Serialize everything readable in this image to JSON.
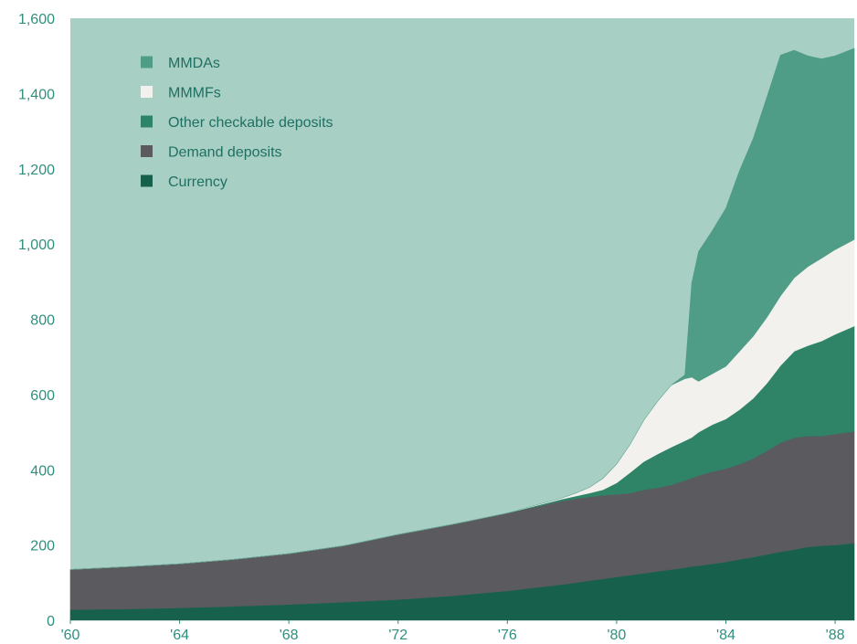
{
  "colors": {
    "background": "#a8cfc4",
    "mmdas": "#4f9c87",
    "mmmfs": "#f2f1ed",
    "other_checkable": "#2f8468",
    "demand": "#5a5a5f",
    "currency": "#17614c",
    "text": "#2f8f7e"
  },
  "legend": [
    {
      "key": "mmdas",
      "label": "MMDAs",
      "color": "#4f9c87"
    },
    {
      "key": "mmmfs",
      "label": "MMMFs",
      "color": "#f2f1ed"
    },
    {
      "key": "other_checkable",
      "label": "Other checkable deposits",
      "color": "#2f8468"
    },
    {
      "key": "demand",
      "label": "Demand deposits",
      "color": "#5a5a5f"
    },
    {
      "key": "currency",
      "label": "Currency",
      "color": "#17614c"
    }
  ],
  "chart_data": {
    "type": "area",
    "stacked": true,
    "title": "",
    "xlabel": "",
    "ylabel": "",
    "xlim": [
      1960,
      1988.7
    ],
    "ylim": [
      0,
      1600
    ],
    "x_ticks": [
      {
        "value": 1960,
        "label": "'60"
      },
      {
        "value": 1964,
        "label": "'64"
      },
      {
        "value": 1968,
        "label": "'68"
      },
      {
        "value": 1972,
        "label": "'72"
      },
      {
        "value": 1976,
        "label": "'76"
      },
      {
        "value": 1980,
        "label": "'80"
      },
      {
        "value": 1984,
        "label": "'84"
      },
      {
        "value": 1988,
        "label": "'88"
      }
    ],
    "y_ticks": [
      {
        "value": 0,
        "label": "0"
      },
      {
        "value": 200,
        "label": "200"
      },
      {
        "value": 400,
        "label": "400"
      },
      {
        "value": 600,
        "label": "600"
      },
      {
        "value": 800,
        "label": "800"
      },
      {
        "value": 1000,
        "label": "1,000"
      },
      {
        "value": 1200,
        "label": "1,200"
      },
      {
        "value": 1400,
        "label": "1,400"
      },
      {
        "value": 1600,
        "label": "1,600"
      }
    ],
    "legend_position": "top-left",
    "grid": false,
    "x": [
      1960,
      1962,
      1964,
      1966,
      1968,
      1970,
      1972,
      1974,
      1976,
      1978,
      1978.5,
      1979,
      1979.5,
      1980,
      1980.5,
      1981,
      1981.5,
      1982,
      1982.5,
      1982.75,
      1983,
      1983.5,
      1984,
      1984.5,
      1985,
      1985.5,
      1986,
      1986.5,
      1987,
      1987.5,
      1988,
      1988.7
    ],
    "series": [
      {
        "name": "Currency",
        "key": "currency",
        "values": [
          28,
          30,
          33,
          37,
          42,
          48,
          55,
          65,
          78,
          95,
          100,
          105,
          110,
          115,
          120,
          125,
          130,
          135,
          140,
          143,
          145,
          150,
          155,
          162,
          168,
          175,
          182,
          188,
          195,
          198,
          200,
          205
        ]
      },
      {
        "name": "Demand deposits",
        "key": "demand",
        "values": [
          107,
          112,
          117,
          125,
          135,
          150,
          173,
          190,
          207,
          222,
          223,
          223,
          222,
          220,
          218,
          222,
          222,
          225,
          232,
          235,
          240,
          245,
          248,
          253,
          262,
          275,
          290,
          297,
          295,
          292,
          295,
          297
        ]
      },
      {
        "name": "Other checkable deposits",
        "key": "other_checkable",
        "values": [
          0,
          0,
          0,
          0,
          0,
          0,
          0,
          0,
          0,
          5,
          7,
          10,
          15,
          30,
          55,
          75,
          90,
          100,
          105,
          108,
          115,
          125,
          132,
          145,
          160,
          180,
          205,
          230,
          240,
          252,
          265,
          280
        ]
      },
      {
        "name": "MMMFs",
        "key": "mmmfs",
        "values": [
          0,
          0,
          0,
          0,
          0,
          0,
          0,
          0,
          0,
          3,
          8,
          15,
          30,
          50,
          75,
          110,
          140,
          165,
          165,
          160,
          135,
          135,
          140,
          155,
          165,
          175,
          185,
          195,
          210,
          220,
          225,
          230
        ]
      },
      {
        "name": "MMDAs",
        "key": "mmdas",
        "values": [
          0,
          0,
          0,
          0,
          0,
          0,
          0,
          0,
          0,
          0,
          0,
          0,
          0,
          0,
          0,
          0,
          0,
          0,
          10,
          250,
          345,
          380,
          420,
          480,
          525,
          585,
          640,
          605,
          560,
          530,
          515,
          508
        ]
      }
    ]
  }
}
